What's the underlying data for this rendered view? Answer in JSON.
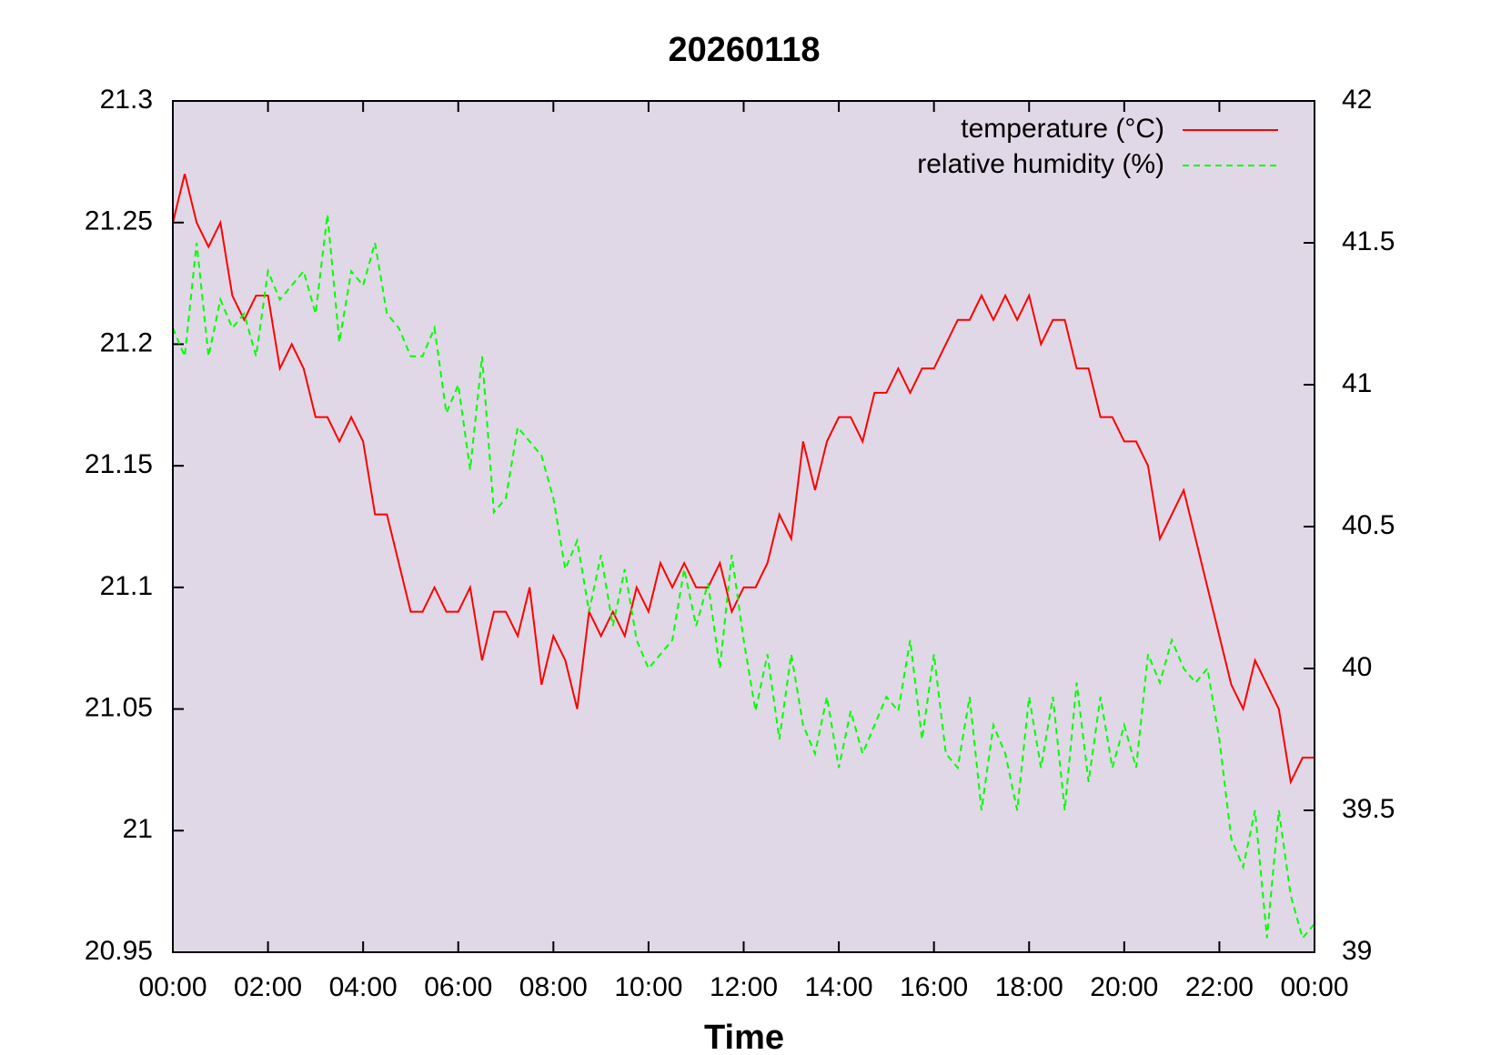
{
  "chart_data": {
    "type": "line",
    "title": "20260118",
    "x_label": "Time",
    "x": [
      0,
      0.25,
      0.5,
      0.75,
      1,
      1.25,
      1.5,
      1.75,
      2,
      2.25,
      2.5,
      2.75,
      3,
      3.25,
      3.5,
      3.75,
      4,
      4.25,
      4.5,
      4.75,
      5,
      5.25,
      5.5,
      5.75,
      6,
      6.25,
      6.5,
      6.75,
      7,
      7.25,
      7.5,
      7.75,
      8,
      8.25,
      8.5,
      8.75,
      9,
      9.25,
      9.5,
      9.75,
      10,
      10.25,
      10.5,
      10.75,
      11,
      11.25,
      11.5,
      11.75,
      12,
      12.25,
      12.5,
      12.75,
      13,
      13.25,
      13.5,
      13.75,
      14,
      14.25,
      14.5,
      14.75,
      15,
      15.25,
      15.5,
      15.75,
      16,
      16.25,
      16.5,
      16.75,
      17,
      17.25,
      17.5,
      17.75,
      18,
      18.25,
      18.5,
      18.75,
      19,
      19.25,
      19.5,
      19.75,
      20,
      20.25,
      20.5,
      20.75,
      21,
      21.25,
      21.5,
      21.75,
      22,
      22.25,
      22.5,
      22.75,
      23,
      23.25,
      23.5,
      23.75,
      24
    ],
    "series": [
      {
        "name": "temperature (°C)",
        "color": "#ff0000",
        "dashed": false,
        "values": [
          21.25,
          21.27,
          21.25,
          21.24,
          21.25,
          21.22,
          21.21,
          21.22,
          21.22,
          21.19,
          21.2,
          21.19,
          21.17,
          21.17,
          21.16,
          21.17,
          21.16,
          21.13,
          21.13,
          21.11,
          21.09,
          21.09,
          21.1,
          21.09,
          21.09,
          21.1,
          21.07,
          21.09,
          21.09,
          21.08,
          21.1,
          21.06,
          21.08,
          21.07,
          21.05,
          21.09,
          21.08,
          21.09,
          21.08,
          21.1,
          21.09,
          21.11,
          21.1,
          21.11,
          21.1,
          21.1,
          21.11,
          21.09,
          21.1,
          21.1,
          21.11,
          21.13,
          21.12,
          21.16,
          21.14,
          21.16,
          21.17,
          21.17,
          21.16,
          21.18,
          21.18,
          21.19,
          21.18,
          21.19,
          21.19,
          21.2,
          21.21,
          21.21,
          21.22,
          21.21,
          21.22,
          21.21,
          21.22,
          21.2,
          21.21,
          21.21,
          21.19,
          21.19,
          21.17,
          21.17,
          21.16,
          21.16,
          21.15,
          21.12,
          21.13,
          21.14,
          21.12,
          21.1,
          21.08,
          21.06,
          21.05,
          21.07,
          21.06,
          21.05,
          21.02,
          21.03,
          21.03
        ]
      },
      {
        "name": "relative humidity (%)",
        "color": "#00ff00",
        "dashed": true,
        "axis": "y2",
        "values": [
          41.2,
          41.1,
          41.5,
          41.1,
          41.3,
          41.2,
          41.25,
          41.1,
          41.4,
          41.3,
          41.35,
          41.4,
          41.25,
          41.6,
          41.15,
          41.4,
          41.35,
          41.5,
          41.25,
          41.2,
          41.1,
          41.1,
          41.2,
          40.9,
          41.0,
          40.7,
          41.1,
          40.55,
          40.6,
          40.85,
          40.8,
          40.75,
          40.6,
          40.35,
          40.45,
          40.2,
          40.4,
          40.15,
          40.35,
          40.1,
          40.0,
          40.05,
          40.1,
          40.35,
          40.15,
          40.3,
          40.0,
          40.4,
          40.1,
          39.85,
          40.05,
          39.75,
          40.05,
          39.8,
          39.7,
          39.9,
          39.65,
          39.85,
          39.7,
          39.8,
          39.9,
          39.85,
          40.1,
          39.75,
          40.05,
          39.7,
          39.65,
          39.9,
          39.5,
          39.8,
          39.7,
          39.5,
          39.9,
          39.65,
          39.9,
          39.5,
          39.95,
          39.6,
          39.9,
          39.65,
          39.8,
          39.65,
          40.05,
          39.95,
          40.1,
          40.0,
          39.95,
          40.0,
          39.75,
          39.4,
          39.3,
          39.5,
          39.05,
          39.5,
          39.2,
          39.05,
          39.1
        ]
      }
    ],
    "xlim": [
      0,
      24
    ],
    "xticks": [
      {
        "value": 0,
        "label": "00:00"
      },
      {
        "value": 2,
        "label": "02:00"
      },
      {
        "value": 4,
        "label": "04:00"
      },
      {
        "value": 6,
        "label": "06:00"
      },
      {
        "value": 8,
        "label": "08:00"
      },
      {
        "value": 10,
        "label": "10:00"
      },
      {
        "value": 12,
        "label": "12:00"
      },
      {
        "value": 14,
        "label": "14:00"
      },
      {
        "value": 16,
        "label": "16:00"
      },
      {
        "value": 18,
        "label": "18:00"
      },
      {
        "value": 20,
        "label": "20:00"
      },
      {
        "value": 22,
        "label": "22:00"
      },
      {
        "value": 24,
        "label": "00:00"
      }
    ],
    "ylim": [
      20.95,
      21.3
    ],
    "yticks": [
      20.95,
      21,
      21.05,
      21.1,
      21.15,
      21.2,
      21.25,
      21.3
    ],
    "y2lim": [
      39,
      42
    ],
    "y2ticks": [
      39,
      39.5,
      40,
      40.5,
      41,
      41.5,
      42
    ],
    "legend": "top-right",
    "background": "#e0d8e6"
  }
}
